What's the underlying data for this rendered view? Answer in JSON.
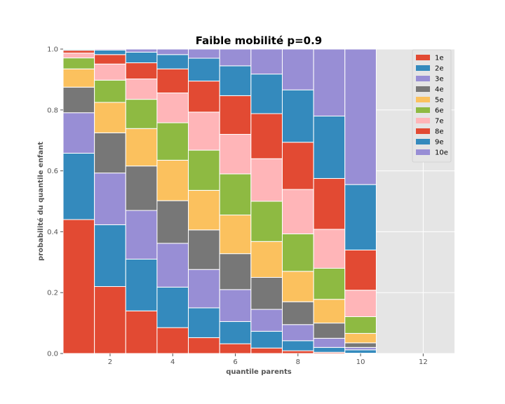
{
  "chart_data": {
    "type": "bar",
    "stacked": true,
    "title": "Faible mobilité p=0.9",
    "xlabel": "quantile parents",
    "ylabel": "probabilité du quantile enfant",
    "xlim": [
      0.5,
      13.0
    ],
    "ylim": [
      0.0,
      1.0
    ],
    "xticks": [
      2,
      4,
      6,
      8,
      10,
      12
    ],
    "xtick_labels": [
      "2",
      "4",
      "6",
      "8",
      "10",
      "12"
    ],
    "yticks": [
      0.0,
      0.2,
      0.4,
      0.6,
      0.8,
      1.0
    ],
    "ytick_labels": [
      "0.0",
      "0.2",
      "0.4",
      "0.6",
      "0.8",
      "1.0"
    ],
    "grid": true,
    "legend_position": "top-right",
    "categories": [
      1,
      2,
      3,
      4,
      5,
      6,
      7,
      8,
      9,
      10
    ],
    "series": [
      {
        "name": "1e",
        "color": "#E24A33",
        "values": [
          0.44,
          0.22,
          0.14,
          0.085,
          0.052,
          0.032,
          0.018,
          0.009,
          0.004,
          0.001
        ]
      },
      {
        "name": "2e",
        "color": "#348ABD",
        "values": [
          0.218,
          0.203,
          0.17,
          0.133,
          0.098,
          0.073,
          0.055,
          0.033,
          0.016,
          0.011
        ]
      },
      {
        "name": "3e",
        "color": "#988ED5",
        "values": [
          0.133,
          0.17,
          0.16,
          0.144,
          0.126,
          0.105,
          0.072,
          0.053,
          0.03,
          0.008
        ]
      },
      {
        "name": "4e",
        "color": "#777777",
        "values": [
          0.084,
          0.132,
          0.146,
          0.14,
          0.13,
          0.118,
          0.105,
          0.075,
          0.05,
          0.015
        ]
      },
      {
        "name": "5e",
        "color": "#FBC15E",
        "values": [
          0.06,
          0.1,
          0.123,
          0.133,
          0.13,
          0.127,
          0.118,
          0.1,
          0.078,
          0.031
        ]
      },
      {
        "name": "6e",
        "color": "#8EBA42",
        "values": [
          0.036,
          0.073,
          0.096,
          0.123,
          0.132,
          0.135,
          0.132,
          0.123,
          0.102,
          0.055
        ]
      },
      {
        "name": "7e",
        "color": "#FFB5B8",
        "values": [
          0.016,
          0.053,
          0.067,
          0.098,
          0.125,
          0.13,
          0.14,
          0.146,
          0.128,
          0.087
        ]
      },
      {
        "name": "8e",
        "color": "#E24A33",
        "values": [
          0.009,
          0.031,
          0.053,
          0.079,
          0.102,
          0.127,
          0.148,
          0.155,
          0.167,
          0.132
        ]
      },
      {
        "name": "9e",
        "color": "#348ABD",
        "values": [
          0.003,
          0.015,
          0.035,
          0.047,
          0.075,
          0.098,
          0.13,
          0.172,
          0.205,
          0.215
        ]
      },
      {
        "name": "10e",
        "color": "#988ED5",
        "values": [
          0.001,
          0.003,
          0.01,
          0.018,
          0.03,
          0.055,
          0.082,
          0.134,
          0.22,
          0.445
        ]
      }
    ]
  }
}
